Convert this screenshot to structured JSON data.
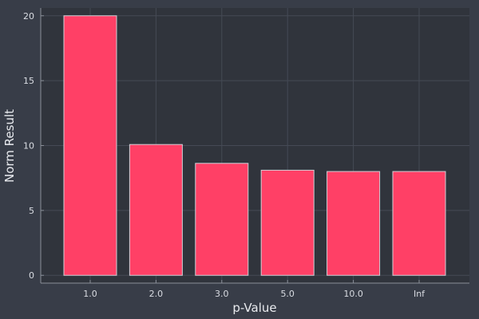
{
  "chart_data": {
    "type": "bar",
    "title": "",
    "xlabel": "p-Value",
    "ylabel": "Norm Result",
    "categories": [
      "1.0",
      "2.0",
      "3.0",
      "5.0",
      "10.0",
      "Inf"
    ],
    "values": [
      20.0,
      10.08,
      8.63,
      8.1,
      8.0,
      8.0
    ],
    "ylim": [
      -0.6,
      20.6
    ],
    "yticks": [
      0,
      5,
      10,
      15,
      20
    ],
    "grid": true,
    "legend": "none",
    "colors": {
      "background": "#383d48",
      "plot_background": "#30343c",
      "bar_fill": "#ff4066",
      "bar_stroke": "#cfcfd6",
      "grid": "#454a55",
      "axis": "#8a8f99"
    }
  }
}
